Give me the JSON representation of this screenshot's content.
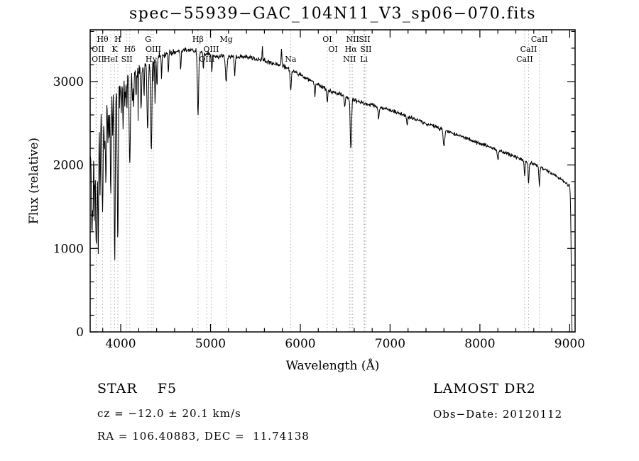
{
  "title": "spec−55939−GAC_104N11_V3_sp06−070.fits",
  "colors": {
    "background": "#ffffff",
    "spectrum": "#000000",
    "axis": "#000000",
    "marker": "#b0b0b0"
  },
  "annotations": {
    "class_label": "STAR    F5",
    "survey": "LAMOST DR2",
    "cz": "cz = −12.0 ± 20.1 km/s",
    "obs_date": "Obs−Date: 20120112",
    "radec": "RA = 106.40883, DEC =  11.74138"
  },
  "chart_data": {
    "type": "line",
    "title": "spec−55939−GAC_104N11_V3_sp06−070.fits",
    "xlabel": "Wavelength (Å)",
    "ylabel": "Flux (relative)",
    "xlim": [
      3660,
      9060
    ],
    "ylim": [
      0,
      3620
    ],
    "xticks": [
      4000,
      5000,
      6000,
      7000,
      8000,
      9000
    ],
    "yticks": [
      0,
      1000,
      2000,
      3000
    ],
    "minor_tick_step": 200,
    "grid": false,
    "legend": "none",
    "line_markers": [
      {
        "label": "OII",
        "wl": 3726,
        "row": 2
      },
      {
        "label": "OII",
        "wl": 3729,
        "row": 3
      },
      {
        "label": "Hθ",
        "wl": 3798,
        "row": 1
      },
      {
        "label": "HeI",
        "wl": 3889,
        "row": 3
      },
      {
        "label": "K",
        "wl": 3933,
        "row": 2
      },
      {
        "label": "H",
        "wl": 3968,
        "row": 1
      },
      {
        "label": "SII",
        "wl": 4068,
        "row": 3
      },
      {
        "label": "Hδ",
        "wl": 4101,
        "row": 2
      },
      {
        "label": "G",
        "wl": 4304,
        "row": 1
      },
      {
        "label": "Hγ",
        "wl": 4340,
        "row": 3
      },
      {
        "label": "OIII",
        "wl": 4363,
        "row": 2
      },
      {
        "label": "Hβ",
        "wl": 4861,
        "row": 1
      },
      {
        "label": "OIII",
        "wl": 4959,
        "row": 3
      },
      {
        "label": "OIII",
        "wl": 5007,
        "row": 2
      },
      {
        "label": "Mg",
        "wl": 5175,
        "row": 1
      },
      {
        "label": "Na",
        "wl": 5893,
        "row": 3
      },
      {
        "label": "OI",
        "wl": 6300,
        "row": 1
      },
      {
        "label": "OI",
        "wl": 6364,
        "row": 2
      },
      {
        "label": "NII",
        "wl": 6548,
        "row": 3
      },
      {
        "label": "Hα",
        "wl": 6563,
        "row": 2
      },
      {
        "label": "NII",
        "wl": 6583,
        "row": 1
      },
      {
        "label": "Li",
        "wl": 6708,
        "row": 3
      },
      {
        "label": "SII",
        "wl": 6716,
        "row": 1
      },
      {
        "label": "SII",
        "wl": 6731,
        "row": 2
      },
      {
        "label": "CaII",
        "wl": 8498,
        "row": 3
      },
      {
        "label": "CaII",
        "wl": 8542,
        "row": 2
      },
      {
        "label": "CaII",
        "wl": 8662,
        "row": 1
      }
    ],
    "spectrum": {
      "seed": 7,
      "step": 4,
      "wl_start": 3662,
      "wl_end": 9026,
      "continuum": [
        [
          3662,
          2150
        ],
        [
          3700,
          2450
        ],
        [
          3760,
          2650
        ],
        [
          3840,
          2760
        ],
        [
          3920,
          2900
        ],
        [
          4000,
          3000
        ],
        [
          4100,
          3070
        ],
        [
          4200,
          3150
        ],
        [
          4300,
          3220
        ],
        [
          4400,
          3290
        ],
        [
          4500,
          3330
        ],
        [
          4600,
          3360
        ],
        [
          4700,
          3375
        ],
        [
          4800,
          3380
        ],
        [
          4900,
          3345
        ],
        [
          5000,
          3320
        ],
        [
          5100,
          3300
        ],
        [
          5200,
          3305
        ],
        [
          5300,
          3300
        ],
        [
          5400,
          3295
        ],
        [
          5500,
          3270
        ],
        [
          5600,
          3250
        ],
        [
          5700,
          3220
        ],
        [
          5800,
          3190
        ],
        [
          5900,
          3140
        ],
        [
          6000,
          3080
        ],
        [
          6100,
          3020
        ],
        [
          6200,
          2960
        ],
        [
          6300,
          2905
        ],
        [
          6400,
          2860
        ],
        [
          6500,
          2820
        ],
        [
          6600,
          2780
        ],
        [
          6700,
          2745
        ],
        [
          6800,
          2715
        ],
        [
          6900,
          2685
        ],
        [
          7000,
          2660
        ],
        [
          7100,
          2620
        ],
        [
          7200,
          2580
        ],
        [
          7300,
          2540
        ],
        [
          7400,
          2500
        ],
        [
          7500,
          2460
        ],
        [
          7600,
          2420
        ],
        [
          7700,
          2380
        ],
        [
          7800,
          2340
        ],
        [
          7900,
          2300
        ],
        [
          8000,
          2260
        ],
        [
          8100,
          2220
        ],
        [
          8200,
          2180
        ],
        [
          8300,
          2140
        ],
        [
          8400,
          2095
        ],
        [
          8500,
          2050
        ],
        [
          8600,
          2010
        ],
        [
          8700,
          1960
        ],
        [
          8800,
          1900
        ],
        [
          8900,
          1830
        ],
        [
          8950,
          1790
        ],
        [
          9000,
          1745
        ],
        [
          9004,
          1690
        ],
        [
          9009,
          1520
        ],
        [
          9014,
          1100
        ],
        [
          9019,
          500
        ],
        [
          9023,
          120
        ],
        [
          9026,
          0
        ]
      ],
      "absorption_lines": [
        [
          3680,
          1000,
          6
        ],
        [
          3692,
          800,
          5
        ],
        [
          3712,
          900,
          6
        ],
        [
          3727,
          1500,
          5
        ],
        [
          3737,
          700,
          5
        ],
        [
          3750,
          1600,
          5
        ],
        [
          3771,
          900,
          5
        ],
        [
          3798,
          1300,
          6
        ],
        [
          3820,
          600,
          5
        ],
        [
          3835,
          1000,
          5
        ],
        [
          3856,
          500,
          4
        ],
        [
          3871,
          500,
          4
        ],
        [
          3889,
          1250,
          5
        ],
        [
          3910,
          450,
          4
        ],
        [
          3933,
          2100,
          6
        ],
        [
          3968,
          1900,
          6
        ],
        [
          4005,
          400,
          4
        ],
        [
          4026,
          550,
          4
        ],
        [
          4045,
          350,
          4
        ],
        [
          4068,
          450,
          4
        ],
        [
          4101,
          1050,
          7
        ],
        [
          4132,
          350,
          4
        ],
        [
          4144,
          400,
          4
        ],
        [
          4172,
          350,
          4
        ],
        [
          4227,
          550,
          5
        ],
        [
          4260,
          400,
          4
        ],
        [
          4300,
          800,
          7
        ],
        [
          4340,
          1100,
          7
        ],
        [
          4383,
          550,
          4
        ],
        [
          4404,
          400,
          4
        ],
        [
          4455,
          300,
          4
        ],
        [
          4531,
          250,
          4
        ],
        [
          4668,
          250,
          4
        ],
        [
          4861,
          760,
          7
        ],
        [
          4921,
          200,
          4
        ],
        [
          5015,
          200,
          4
        ],
        [
          5175,
          320,
          8
        ],
        [
          5270,
          220,
          5
        ],
        [
          5577,
          -160,
          3
        ],
        [
          5790,
          -210,
          4
        ],
        [
          5893,
          260,
          6
        ],
        [
          6162,
          150,
          5
        ],
        [
          6300,
          160,
          5
        ],
        [
          6495,
          130,
          4
        ],
        [
          6563,
          610,
          7
        ],
        [
          6872,
          150,
          6
        ],
        [
          7190,
          100,
          5
        ],
        [
          7600,
          190,
          8
        ],
        [
          8200,
          120,
          6
        ],
        [
          8498,
          190,
          5
        ],
        [
          8542,
          260,
          5
        ],
        [
          8662,
          230,
          5
        ]
      ],
      "noise_bands": [
        {
          "upto": 3770,
          "amp": 155
        },
        {
          "upto": 4010,
          "amp": 95
        },
        {
          "upto": 4460,
          "amp": 60
        },
        {
          "upto": 5000,
          "amp": 34
        },
        {
          "upto": 6000,
          "amp": 26
        },
        {
          "upto": 7000,
          "amp": 24
        },
        {
          "upto": 8000,
          "amp": 22
        },
        {
          "upto": 9005,
          "amp": 20
        },
        {
          "upto": 9300,
          "amp": 6
        }
      ]
    }
  }
}
